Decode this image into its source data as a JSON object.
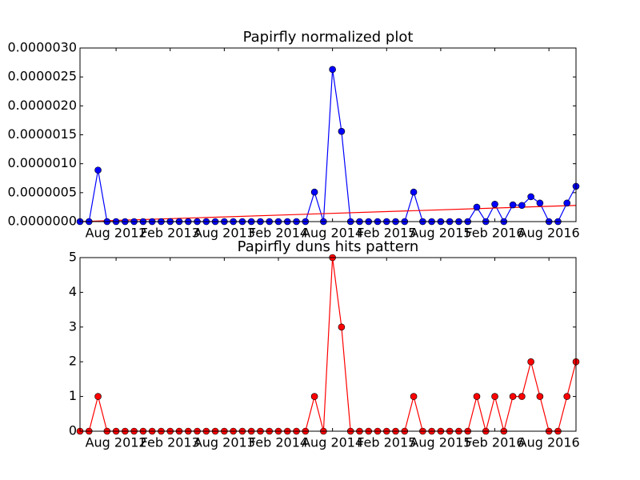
{
  "chart_data": [
    {
      "type": "line",
      "title": "Papirfly normalized plot",
      "color": "#0000ff",
      "x": [
        "2012-04",
        "2012-05",
        "2012-06",
        "2012-07",
        "2012-08",
        "2012-09",
        "2012-10",
        "2012-11",
        "2012-12",
        "2013-01",
        "2013-02",
        "2013-03",
        "2013-04",
        "2013-05",
        "2013-06",
        "2013-07",
        "2013-08",
        "2013-09",
        "2013-10",
        "2013-11",
        "2013-12",
        "2014-01",
        "2014-02",
        "2014-03",
        "2014-04",
        "2014-05",
        "2014-06",
        "2014-07",
        "2014-08",
        "2014-09",
        "2014-10",
        "2014-11",
        "2014-12",
        "2015-01",
        "2015-02",
        "2015-03",
        "2015-04",
        "2015-05",
        "2015-06",
        "2015-07",
        "2015-08",
        "2015-09",
        "2015-10",
        "2015-11",
        "2015-12",
        "2016-01",
        "2016-02",
        "2016-03",
        "2016-04",
        "2016-05",
        "2016-06",
        "2016-07",
        "2016-08",
        "2016-09",
        "2016-10",
        "2016-11"
      ],
      "values": [
        0,
        0,
        8.9e-07,
        0,
        0,
        0,
        0,
        0,
        0,
        0,
        0,
        0,
        0,
        0,
        0,
        0,
        0,
        0,
        0,
        0,
        0,
        0,
        0,
        0,
        0,
        0,
        5.1e-07,
        0,
        2.63e-06,
        1.56e-06,
        0,
        0,
        0,
        0,
        0,
        0,
        0,
        5.1e-07,
        0,
        0,
        0,
        0,
        0,
        0,
        2.5e-07,
        0,
        3e-07,
        0,
        2.9e-07,
        2.8e-07,
        4.3e-07,
        3.2e-07,
        0,
        0,
        3.2e-07,
        6.1e-07
      ],
      "trend": {
        "color": "#ff0000",
        "x": [
          "2012-04",
          "2016-11"
        ],
        "values": [
          0,
          2.8e-07
        ]
      },
      "xlim": [
        "2012-04",
        "2016-11"
      ],
      "xticks": [
        {
          "value": "2012-08",
          "label": "Aug 2012"
        },
        {
          "value": "2013-02",
          "label": "Feb 2013"
        },
        {
          "value": "2013-08",
          "label": "Aug 2013"
        },
        {
          "value": "2014-02",
          "label": "Feb 2014"
        },
        {
          "value": "2014-08",
          "label": "Aug 2014"
        },
        {
          "value": "2015-02",
          "label": "Feb 2015"
        },
        {
          "value": "2015-08",
          "label": "Aug 2015"
        },
        {
          "value": "2016-02",
          "label": "Feb 2016"
        },
        {
          "value": "2016-08",
          "label": "Aug 2016"
        }
      ],
      "ylim": [
        0,
        3e-06
      ],
      "yticks": [
        {
          "value": 0,
          "label": "0.0000000"
        },
        {
          "value": 5e-07,
          "label": "0.0000005"
        },
        {
          "value": 1e-06,
          "label": "0.0000010"
        },
        {
          "value": 1.5e-06,
          "label": "0.0000015"
        },
        {
          "value": 2e-06,
          "label": "0.0000020"
        },
        {
          "value": 2.5e-06,
          "label": "0.0000025"
        },
        {
          "value": 3e-06,
          "label": "0.0000030"
        }
      ]
    },
    {
      "type": "line",
      "title": "Papirfly duns hits pattern",
      "color": "#ff0000",
      "x": [
        "2012-04",
        "2012-05",
        "2012-06",
        "2012-07",
        "2012-08",
        "2012-09",
        "2012-10",
        "2012-11",
        "2012-12",
        "2013-01",
        "2013-02",
        "2013-03",
        "2013-04",
        "2013-05",
        "2013-06",
        "2013-07",
        "2013-08",
        "2013-09",
        "2013-10",
        "2013-11",
        "2013-12",
        "2014-01",
        "2014-02",
        "2014-03",
        "2014-04",
        "2014-05",
        "2014-06",
        "2014-07",
        "2014-08",
        "2014-09",
        "2014-10",
        "2014-11",
        "2014-12",
        "2015-01",
        "2015-02",
        "2015-03",
        "2015-04",
        "2015-05",
        "2015-06",
        "2015-07",
        "2015-08",
        "2015-09",
        "2015-10",
        "2015-11",
        "2015-12",
        "2016-01",
        "2016-02",
        "2016-03",
        "2016-04",
        "2016-05",
        "2016-06",
        "2016-07",
        "2016-08",
        "2016-09",
        "2016-10",
        "2016-11"
      ],
      "values": [
        0,
        0,
        1,
        0,
        0,
        0,
        0,
        0,
        0,
        0,
        0,
        0,
        0,
        0,
        0,
        0,
        0,
        0,
        0,
        0,
        0,
        0,
        0,
        0,
        0,
        0,
        1,
        0,
        5,
        3,
        0,
        0,
        0,
        0,
        0,
        0,
        0,
        1,
        0,
        0,
        0,
        0,
        0,
        0,
        1,
        0,
        1,
        0,
        1,
        1,
        2,
        1,
        0,
        0,
        1,
        2
      ],
      "xlim": [
        "2012-04",
        "2016-11"
      ],
      "xticks": [
        {
          "value": "2012-08",
          "label": "Aug 2012"
        },
        {
          "value": "2013-02",
          "label": "Feb 2013"
        },
        {
          "value": "2013-08",
          "label": "Aug 2013"
        },
        {
          "value": "2014-02",
          "label": "Feb 2014"
        },
        {
          "value": "2014-08",
          "label": "Aug 2014"
        },
        {
          "value": "2015-02",
          "label": "Feb 2015"
        },
        {
          "value": "2015-08",
          "label": "Aug 2015"
        },
        {
          "value": "2016-02",
          "label": "Feb 2016"
        },
        {
          "value": "2016-08",
          "label": "Aug 2016"
        }
      ],
      "ylim": [
        0,
        5
      ],
      "yticks": [
        0,
        1,
        2,
        3,
        4,
        5
      ]
    }
  ]
}
